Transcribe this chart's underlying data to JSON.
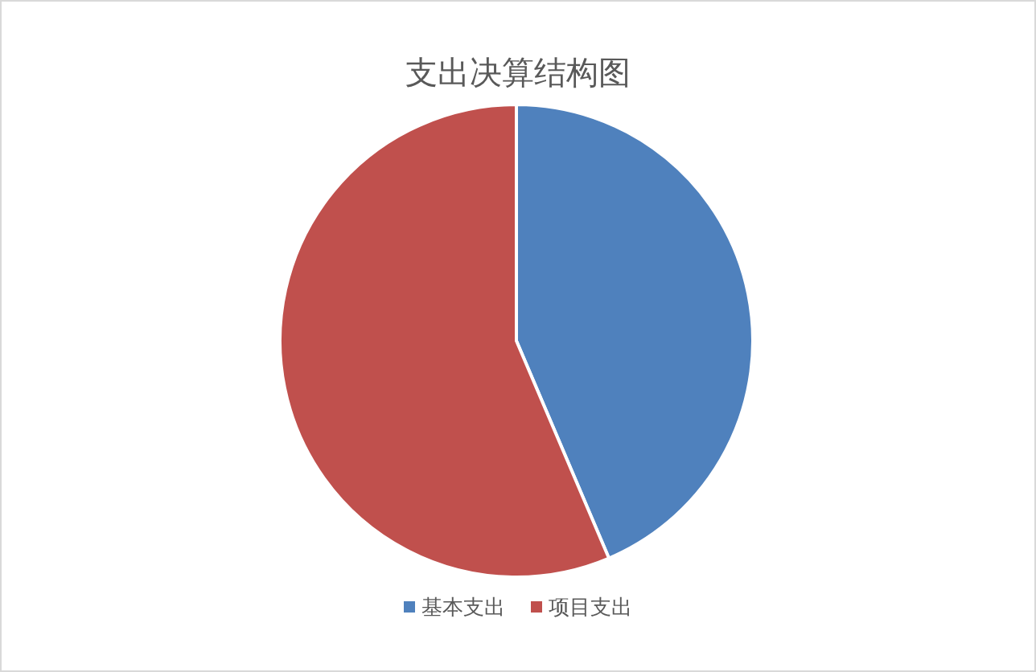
{
  "chart_data": {
    "type": "pie",
    "title": "支出决算结构图",
    "categories": [
      "基本支出",
      "项目支出"
    ],
    "values": [
      43.6,
      56.4
    ],
    "colors": [
      "#4f81bd",
      "#c0504d"
    ],
    "legend": "bottom"
  }
}
